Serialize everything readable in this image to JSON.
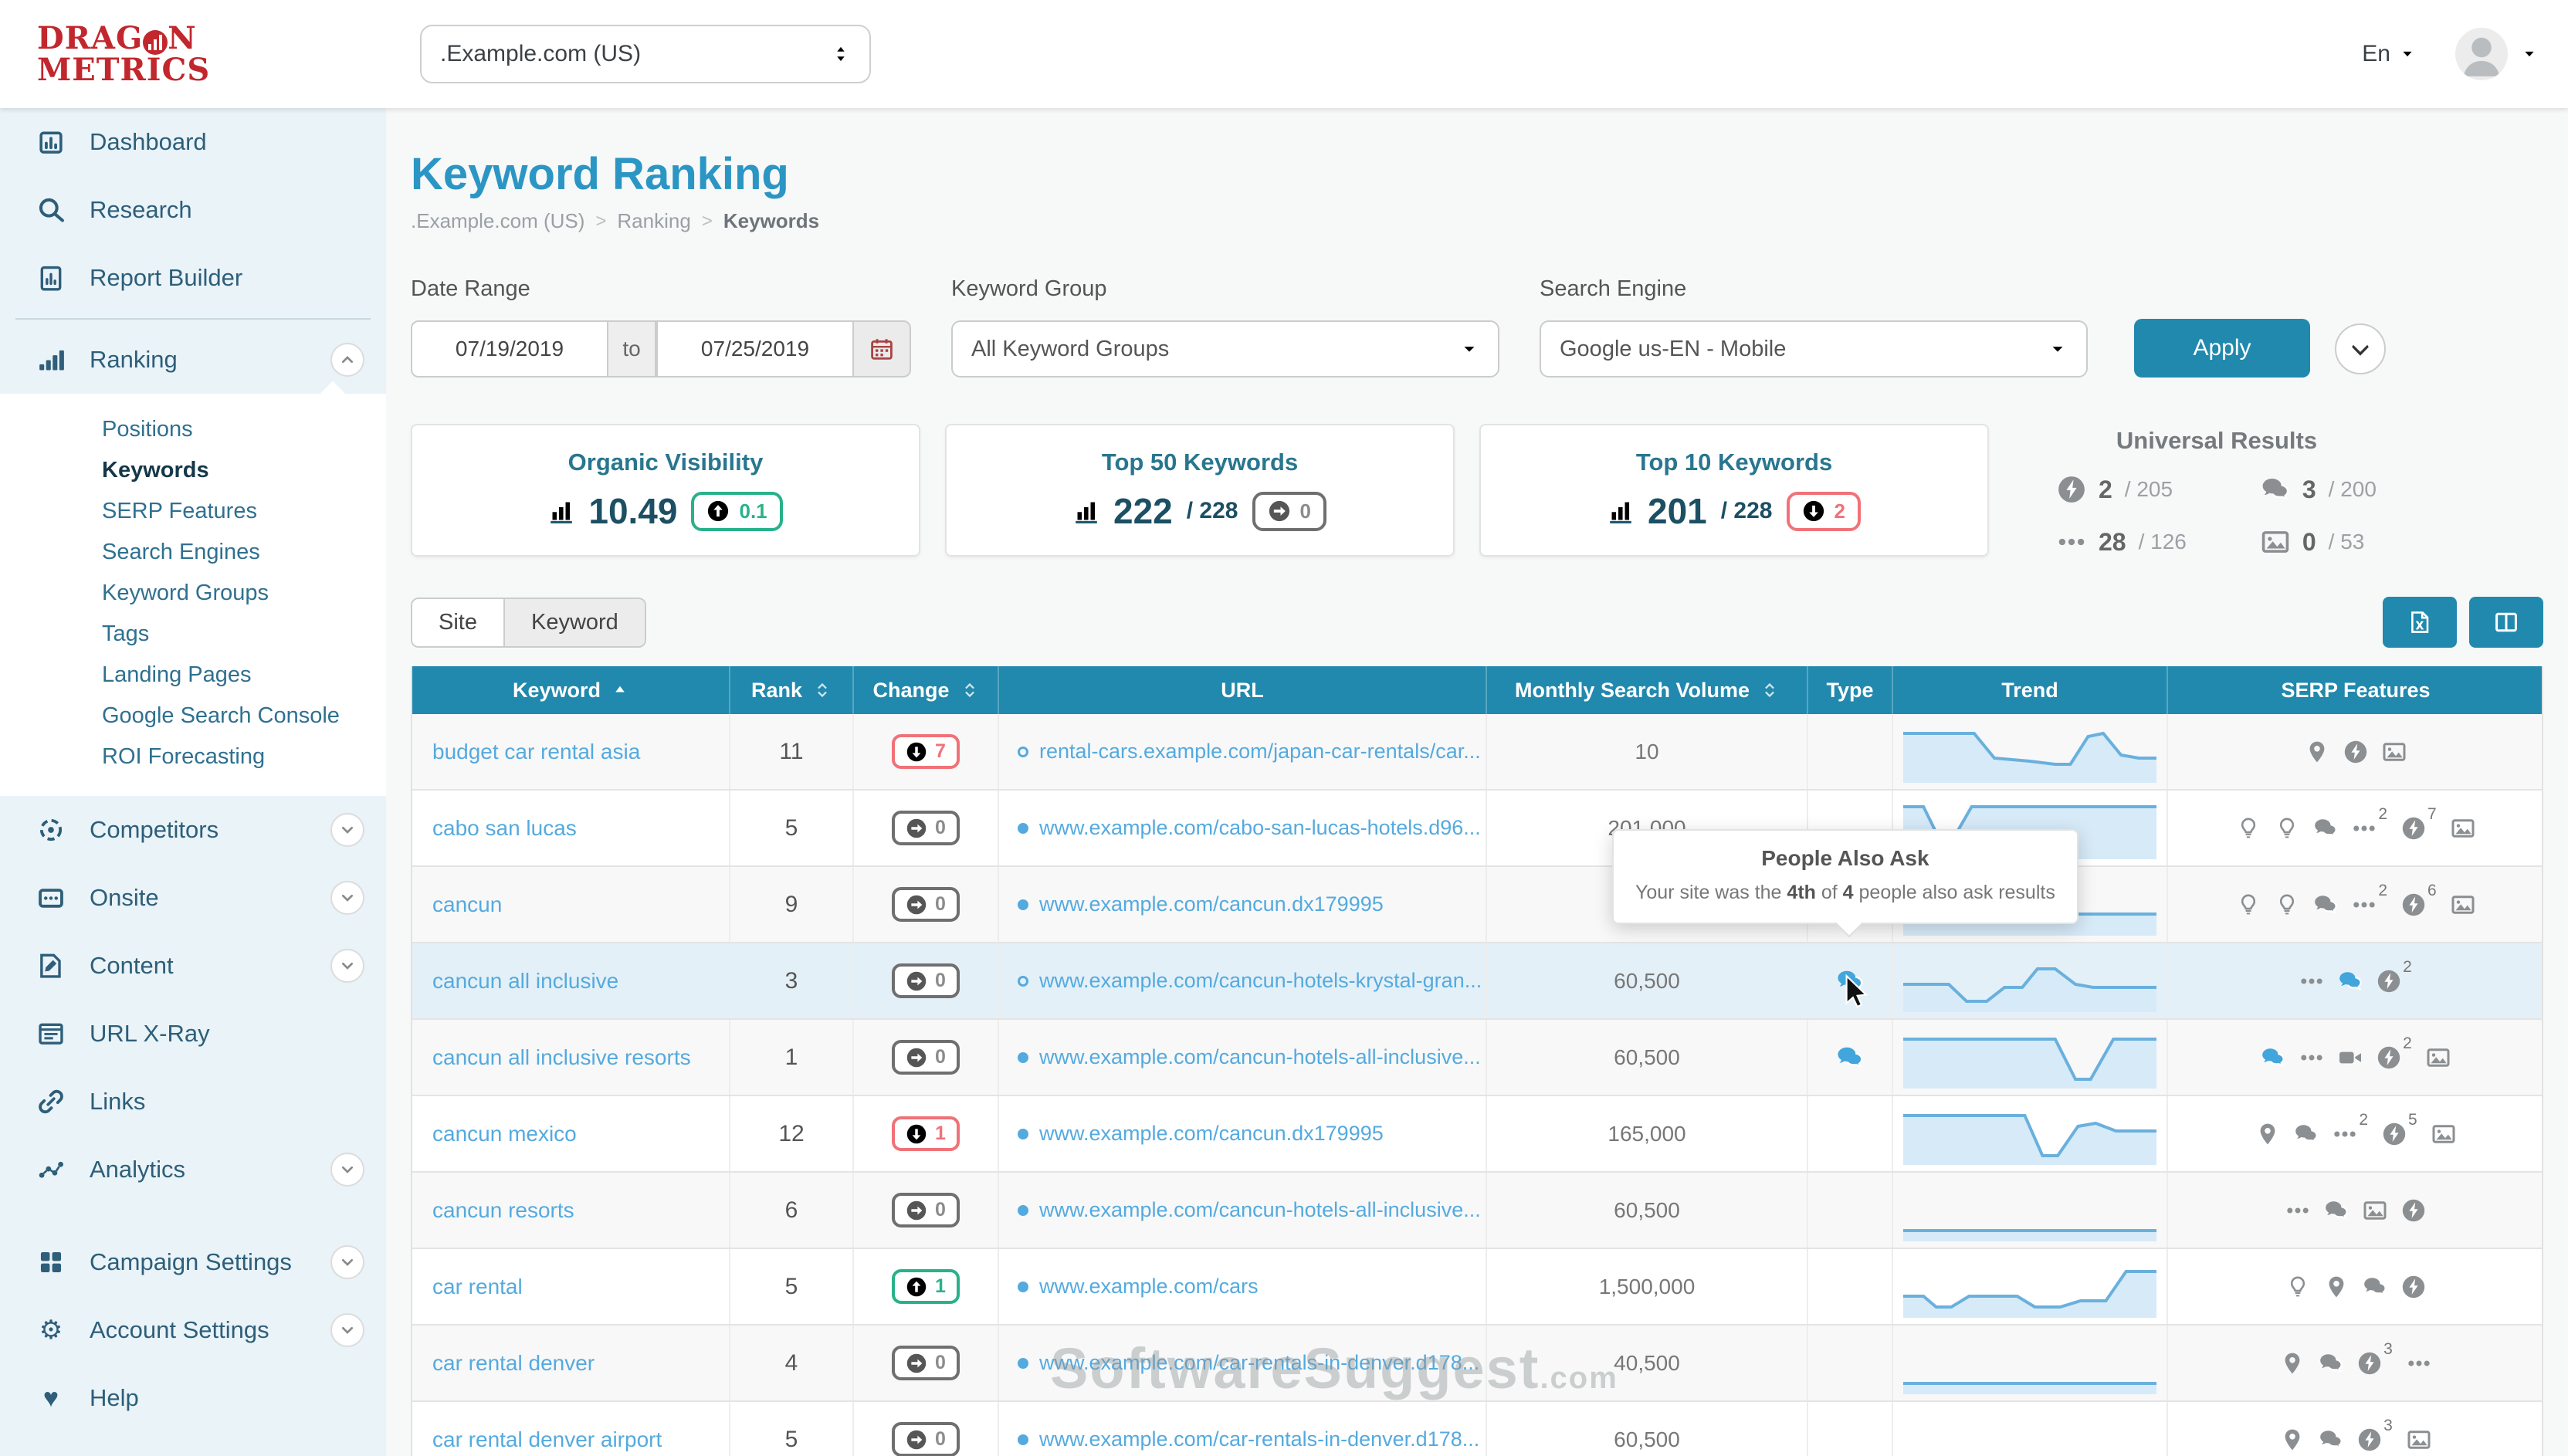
{
  "colors": {
    "accent": "#2189ad",
    "title_blue": "#2b96c4",
    "link_blue": "#54aadf",
    "logo_red": "#c1272d",
    "badge_red": "#f07278",
    "badge_green": "#29b18a",
    "row_highlight": "#e4f0f7"
  },
  "header": {
    "logo_line1": "DRAGON",
    "logo_line2": "METRICS",
    "site_selector": ".Example.com (US)",
    "language": "En"
  },
  "sidebar": {
    "items": [
      {
        "label": "Dashboard",
        "icon": "dashboard"
      },
      {
        "label": "Research",
        "icon": "research"
      },
      {
        "label": "Report Builder",
        "icon": "report",
        "divider_after": true
      },
      {
        "label": "Ranking",
        "icon": "ranking",
        "expanded": true,
        "active_child": "Keywords",
        "children": [
          "Positions",
          "Keywords",
          "SERP Features",
          "Search Engines",
          "Keyword Groups",
          "Tags",
          "Landing Pages",
          "Google Search Console",
          "ROI Forecasting"
        ]
      },
      {
        "label": "Competitors",
        "icon": "competitors",
        "chevron": true
      },
      {
        "label": "Onsite",
        "icon": "onsite",
        "chevron": true
      },
      {
        "label": "Content",
        "icon": "content",
        "chevron": true
      },
      {
        "label": "URL X-Ray",
        "icon": "urlxray"
      },
      {
        "label": "Links",
        "icon": "links"
      },
      {
        "label": "Analytics",
        "icon": "analytics",
        "chevron": true,
        "gap_after": true
      },
      {
        "label": "Campaign Settings",
        "icon": "campaign",
        "chevron": true
      },
      {
        "label": "Account Settings",
        "icon": "gear",
        "chevron": true
      },
      {
        "label": "Help",
        "icon": "heart"
      }
    ]
  },
  "page": {
    "title": "Keyword Ranking",
    "breadcrumb": {
      "root": ".Example.com (US)",
      "section": "Ranking",
      "current": "Keywords"
    }
  },
  "filters": {
    "date_range": {
      "label": "Date Range",
      "from": "07/19/2019",
      "to_label": "to",
      "to": "07/25/2019"
    },
    "keyword_group": {
      "label": "Keyword Group",
      "value": "All Keyword Groups"
    },
    "search_engine": {
      "label": "Search Engine",
      "value": "Google us-EN - Mobile"
    },
    "apply_label": "Apply"
  },
  "stats": {
    "cards": [
      {
        "title": "Organic Visibility",
        "value": "10.49",
        "total": "",
        "badge": {
          "dir": "up",
          "value": "0.1"
        }
      },
      {
        "title": "Top 50 Keywords",
        "value": "222",
        "total": "/ 228",
        "badge": {
          "dir": "neutral",
          "value": "0"
        }
      },
      {
        "title": "Top 10 Keywords",
        "value": "201",
        "total": "/ 228",
        "badge": {
          "dir": "down",
          "value": "2"
        }
      }
    ],
    "universal": {
      "title": "Universal Results",
      "items": [
        {
          "icon": "amp",
          "value": "2",
          "total": "/ 205"
        },
        {
          "icon": "chat",
          "value": "3",
          "total": "/ 200"
        },
        {
          "icon": "ellipsis",
          "value": "28",
          "total": "/ 126"
        },
        {
          "icon": "image",
          "value": "0",
          "total": "/ 53"
        }
      ]
    }
  },
  "toolbar": {
    "tabs": [
      {
        "label": "Site",
        "active": true
      },
      {
        "label": "Keyword",
        "active": false
      }
    ]
  },
  "table": {
    "columns": [
      {
        "label": "Keyword",
        "sort": "asc"
      },
      {
        "label": "Rank",
        "sort": "both"
      },
      {
        "label": "Change",
        "sort": "both"
      },
      {
        "label": "URL"
      },
      {
        "label": "Monthly Search Volume",
        "sort": "both"
      },
      {
        "label": "Type"
      },
      {
        "label": "Trend"
      },
      {
        "label": "SERP Features"
      }
    ],
    "rows": [
      {
        "keyword": "budget car rental asia",
        "rank": "11",
        "change": {
          "dir": "down",
          "value": "7"
        },
        "url": {
          "marker": "open",
          "text": "rental-cars.example.com/japan-car-rentals/car..."
        },
        "volume": "10",
        "type": [],
        "trend": [
          [
            0,
            8
          ],
          [
            28,
            8
          ],
          [
            36,
            24
          ],
          [
            50,
            26
          ],
          [
            60,
            28
          ],
          [
            66,
            28
          ],
          [
            73,
            10
          ],
          [
            79,
            8
          ],
          [
            86,
            22
          ],
          [
            93,
            24
          ],
          [
            100,
            24
          ]
        ],
        "serp": [
          {
            "i": "pin"
          },
          {
            "i": "amp"
          },
          {
            "i": "image"
          }
        ]
      },
      {
        "keyword": "cabo san lucas",
        "rank": "5",
        "change": {
          "dir": "neutral",
          "value": "0"
        },
        "url": {
          "marker": "filled",
          "text": "www.example.com/cabo-san-lucas-hotels.d96..."
        },
        "volume": "201,000",
        "type": [],
        "trend": [
          [
            0,
            6
          ],
          [
            8,
            6
          ],
          [
            14,
            26
          ],
          [
            20,
            26
          ],
          [
            27,
            6
          ],
          [
            100,
            6
          ]
        ],
        "serp": [
          {
            "i": "bulb"
          },
          {
            "i": "bulb"
          },
          {
            "i": "chat"
          },
          {
            "i": "ellipsis",
            "n": "2"
          },
          {
            "i": "amp",
            "n": "7"
          },
          {
            "i": "image"
          }
        ]
      },
      {
        "keyword": "cancun",
        "rank": "9",
        "change": {
          "dir": "neutral",
          "value": "0"
        },
        "url": {
          "marker": "filled",
          "text": "www.example.com/cancun.dx179995"
        },
        "volume": "",
        "type": [],
        "trend": [
          [
            0,
            26
          ],
          [
            100,
            26
          ]
        ],
        "serp": [
          {
            "i": "bulb"
          },
          {
            "i": "bulb"
          },
          {
            "i": "chat"
          },
          {
            "i": "ellipsis",
            "n": "2"
          },
          {
            "i": "amp",
            "n": "6"
          },
          {
            "i": "image"
          }
        ]
      },
      {
        "keyword": "cancun all inclusive",
        "rank": "3",
        "highlight": true,
        "change": {
          "dir": "neutral",
          "value": "0"
        },
        "url": {
          "marker": "open",
          "text": "www.example.com/cancun-hotels-krystal-gran..."
        },
        "volume": "60,500",
        "type": [
          "chat"
        ],
        "trend": [
          [
            0,
            22
          ],
          [
            18,
            22
          ],
          [
            25,
            33
          ],
          [
            33,
            33
          ],
          [
            40,
            24
          ],
          [
            47,
            24
          ],
          [
            53,
            12
          ],
          [
            60,
            12
          ],
          [
            68,
            22
          ],
          [
            75,
            24
          ],
          [
            100,
            24
          ]
        ],
        "serp": [
          {
            "i": "ellipsis"
          },
          {
            "i": "chat",
            "blue": true
          },
          {
            "i": "amp",
            "n": "2"
          }
        ]
      },
      {
        "keyword": "cancun all inclusive resorts",
        "rank": "1",
        "change": {
          "dir": "neutral",
          "value": "0"
        },
        "url": {
          "marker": "filled",
          "text": "www.example.com/cancun-hotels-all-inclusive..."
        },
        "volume": "60,500",
        "type": [
          "chat"
        ],
        "trend": [
          [
            0,
            8
          ],
          [
            60,
            8
          ],
          [
            68,
            34
          ],
          [
            74,
            34
          ],
          [
            83,
            8
          ],
          [
            100,
            8
          ]
        ],
        "serp": [
          {
            "i": "chat",
            "blue": true
          },
          {
            "i": "ellipsis"
          },
          {
            "i": "video"
          },
          {
            "i": "amp",
            "n": "2"
          },
          {
            "i": "image"
          }
        ]
      },
      {
        "keyword": "cancun mexico",
        "rank": "12",
        "change": {
          "dir": "down",
          "value": "1"
        },
        "url": {
          "marker": "filled",
          "text": "www.example.com/cancun.dx179995"
        },
        "volume": "165,000",
        "type": [],
        "trend": [
          [
            0,
            8
          ],
          [
            48,
            8
          ],
          [
            55,
            34
          ],
          [
            61,
            34
          ],
          [
            69,
            15
          ],
          [
            76,
            13
          ],
          [
            84,
            18
          ],
          [
            100,
            18
          ]
        ],
        "serp": [
          {
            "i": "pin"
          },
          {
            "i": "chat"
          },
          {
            "i": "ellipsis",
            "n": "2"
          },
          {
            "i": "amp",
            "n": "5"
          },
          {
            "i": "image"
          }
        ]
      },
      {
        "keyword": "cancun resorts",
        "rank": "6",
        "change": {
          "dir": "neutral",
          "value": "0"
        },
        "url": {
          "marker": "filled",
          "text": "www.example.com/cancun-hotels-all-inclusive..."
        },
        "volume": "60,500",
        "type": [],
        "trend": [
          [
            0,
            33
          ],
          [
            100,
            33
          ]
        ],
        "serp": [
          {
            "i": "ellipsis"
          },
          {
            "i": "chat"
          },
          {
            "i": "image"
          },
          {
            "i": "amp"
          }
        ]
      },
      {
        "keyword": "car rental",
        "rank": "5",
        "change": {
          "dir": "up",
          "value": "1"
        },
        "url": {
          "marker": "filled",
          "text": "www.example.com/cars"
        },
        "volume": "1,500,000",
        "type": [],
        "trend": [
          [
            0,
            26
          ],
          [
            8,
            26
          ],
          [
            13,
            33
          ],
          [
            19,
            33
          ],
          [
            26,
            26
          ],
          [
            45,
            26
          ],
          [
            52,
            33
          ],
          [
            62,
            33
          ],
          [
            70,
            29
          ],
          [
            80,
            29
          ],
          [
            88,
            10
          ],
          [
            100,
            10
          ]
        ],
        "serp": [
          {
            "i": "bulb"
          },
          {
            "i": "pin"
          },
          {
            "i": "chat"
          },
          {
            "i": "amp"
          }
        ]
      },
      {
        "keyword": "car rental denver",
        "rank": "4",
        "change": {
          "dir": "neutral",
          "value": "0"
        },
        "url": {
          "marker": "filled",
          "text": "www.example.com/car-rentals-in-denver.d178..."
        },
        "volume": "40,500",
        "type": [],
        "trend": [
          [
            0,
            33
          ],
          [
            100,
            33
          ]
        ],
        "serp": [
          {
            "i": "pin"
          },
          {
            "i": "chat"
          },
          {
            "i": "amp",
            "n": "3"
          },
          {
            "i": "ellipsis"
          }
        ]
      },
      {
        "keyword": "car rental denver airport",
        "rank": "5",
        "change": {
          "dir": "neutral",
          "value": "0"
        },
        "url": {
          "marker": "filled",
          "text": "www.example.com/car-rentals-in-denver.d178..."
        },
        "volume": "60,500",
        "type": [],
        "trend": [
          [
            0,
            33
          ],
          [
            100,
            33
          ]
        ],
        "serp": [
          {
            "i": "pin"
          },
          {
            "i": "chat"
          },
          {
            "i": "amp",
            "n": "3"
          },
          {
            "i": "image"
          }
        ]
      }
    ]
  },
  "tooltip": {
    "title": "People Also Ask",
    "prefix": "Your site was the ",
    "position": "4th",
    "mid": " of ",
    "total": "4",
    "suffix": " people also ask results"
  },
  "watermark": {
    "text": "SoftwareSuggest",
    "suffix": ".com"
  }
}
